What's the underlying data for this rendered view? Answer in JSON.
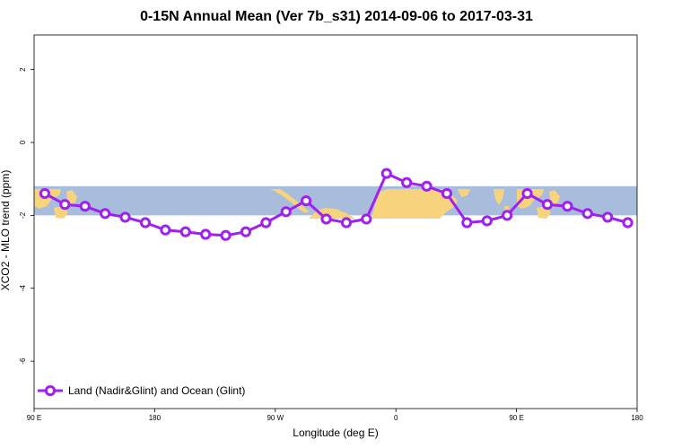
{
  "chart_data": {
    "type": "line",
    "title": "0-15N Annual Mean (Ver 7b_s31)   2014-09-06 to 2017-03-31",
    "xlabel": "Longitude (deg E)",
    "ylabel": "XCO2 - MLO trend (ppm)",
    "x_ticks": [
      {
        "value": 90,
        "label": "90 E"
      },
      {
        "value": 180,
        "label": "180"
      },
      {
        "value": 270,
        "label": "90 W"
      },
      {
        "value": 360,
        "label": "0"
      },
      {
        "value": 450,
        "label": "90 E"
      },
      {
        "value": 540,
        "label": "180"
      }
    ],
    "y_ticks": [
      {
        "value": 2,
        "label": "2"
      },
      {
        "value": 0,
        "label": "0"
      },
      {
        "value": -2,
        "label": "-2"
      },
      {
        "value": -4,
        "label": "-4"
      },
      {
        "value": -6,
        "label": "-6"
      }
    ],
    "xlim": [
      90,
      540
    ],
    "ylim": [
      -7.3,
      2.95
    ],
    "map_band": {
      "lat_range": "0-15N",
      "y_bottom": -2.0,
      "y_top": -1.2
    },
    "legend": {
      "position": "bottom-left"
    },
    "series": [
      {
        "name": "Land (Nadir&Glint) and Ocean (Glint)",
        "color": "#a020f0",
        "x": [
          98,
          113,
          128,
          143,
          158,
          173,
          188,
          203,
          218,
          233,
          248,
          263,
          278,
          293,
          308,
          323,
          338,
          353,
          368,
          383,
          398,
          413,
          428,
          443,
          458,
          473,
          488,
          503,
          518,
          533
        ],
        "y": [
          -1.4,
          -1.7,
          -1.75,
          -1.95,
          -2.05,
          -2.2,
          -2.4,
          -2.45,
          -2.52,
          -2.55,
          -2.45,
          -2.2,
          -1.9,
          -1.6,
          -2.1,
          -2.2,
          -2.1,
          -0.85,
          -1.1,
          -1.2,
          -1.4,
          -2.2,
          -2.15,
          -2.0,
          -1.4,
          -1.7,
          -1.75,
          -1.95,
          -2.05,
          -2.2
        ]
      }
    ]
  }
}
